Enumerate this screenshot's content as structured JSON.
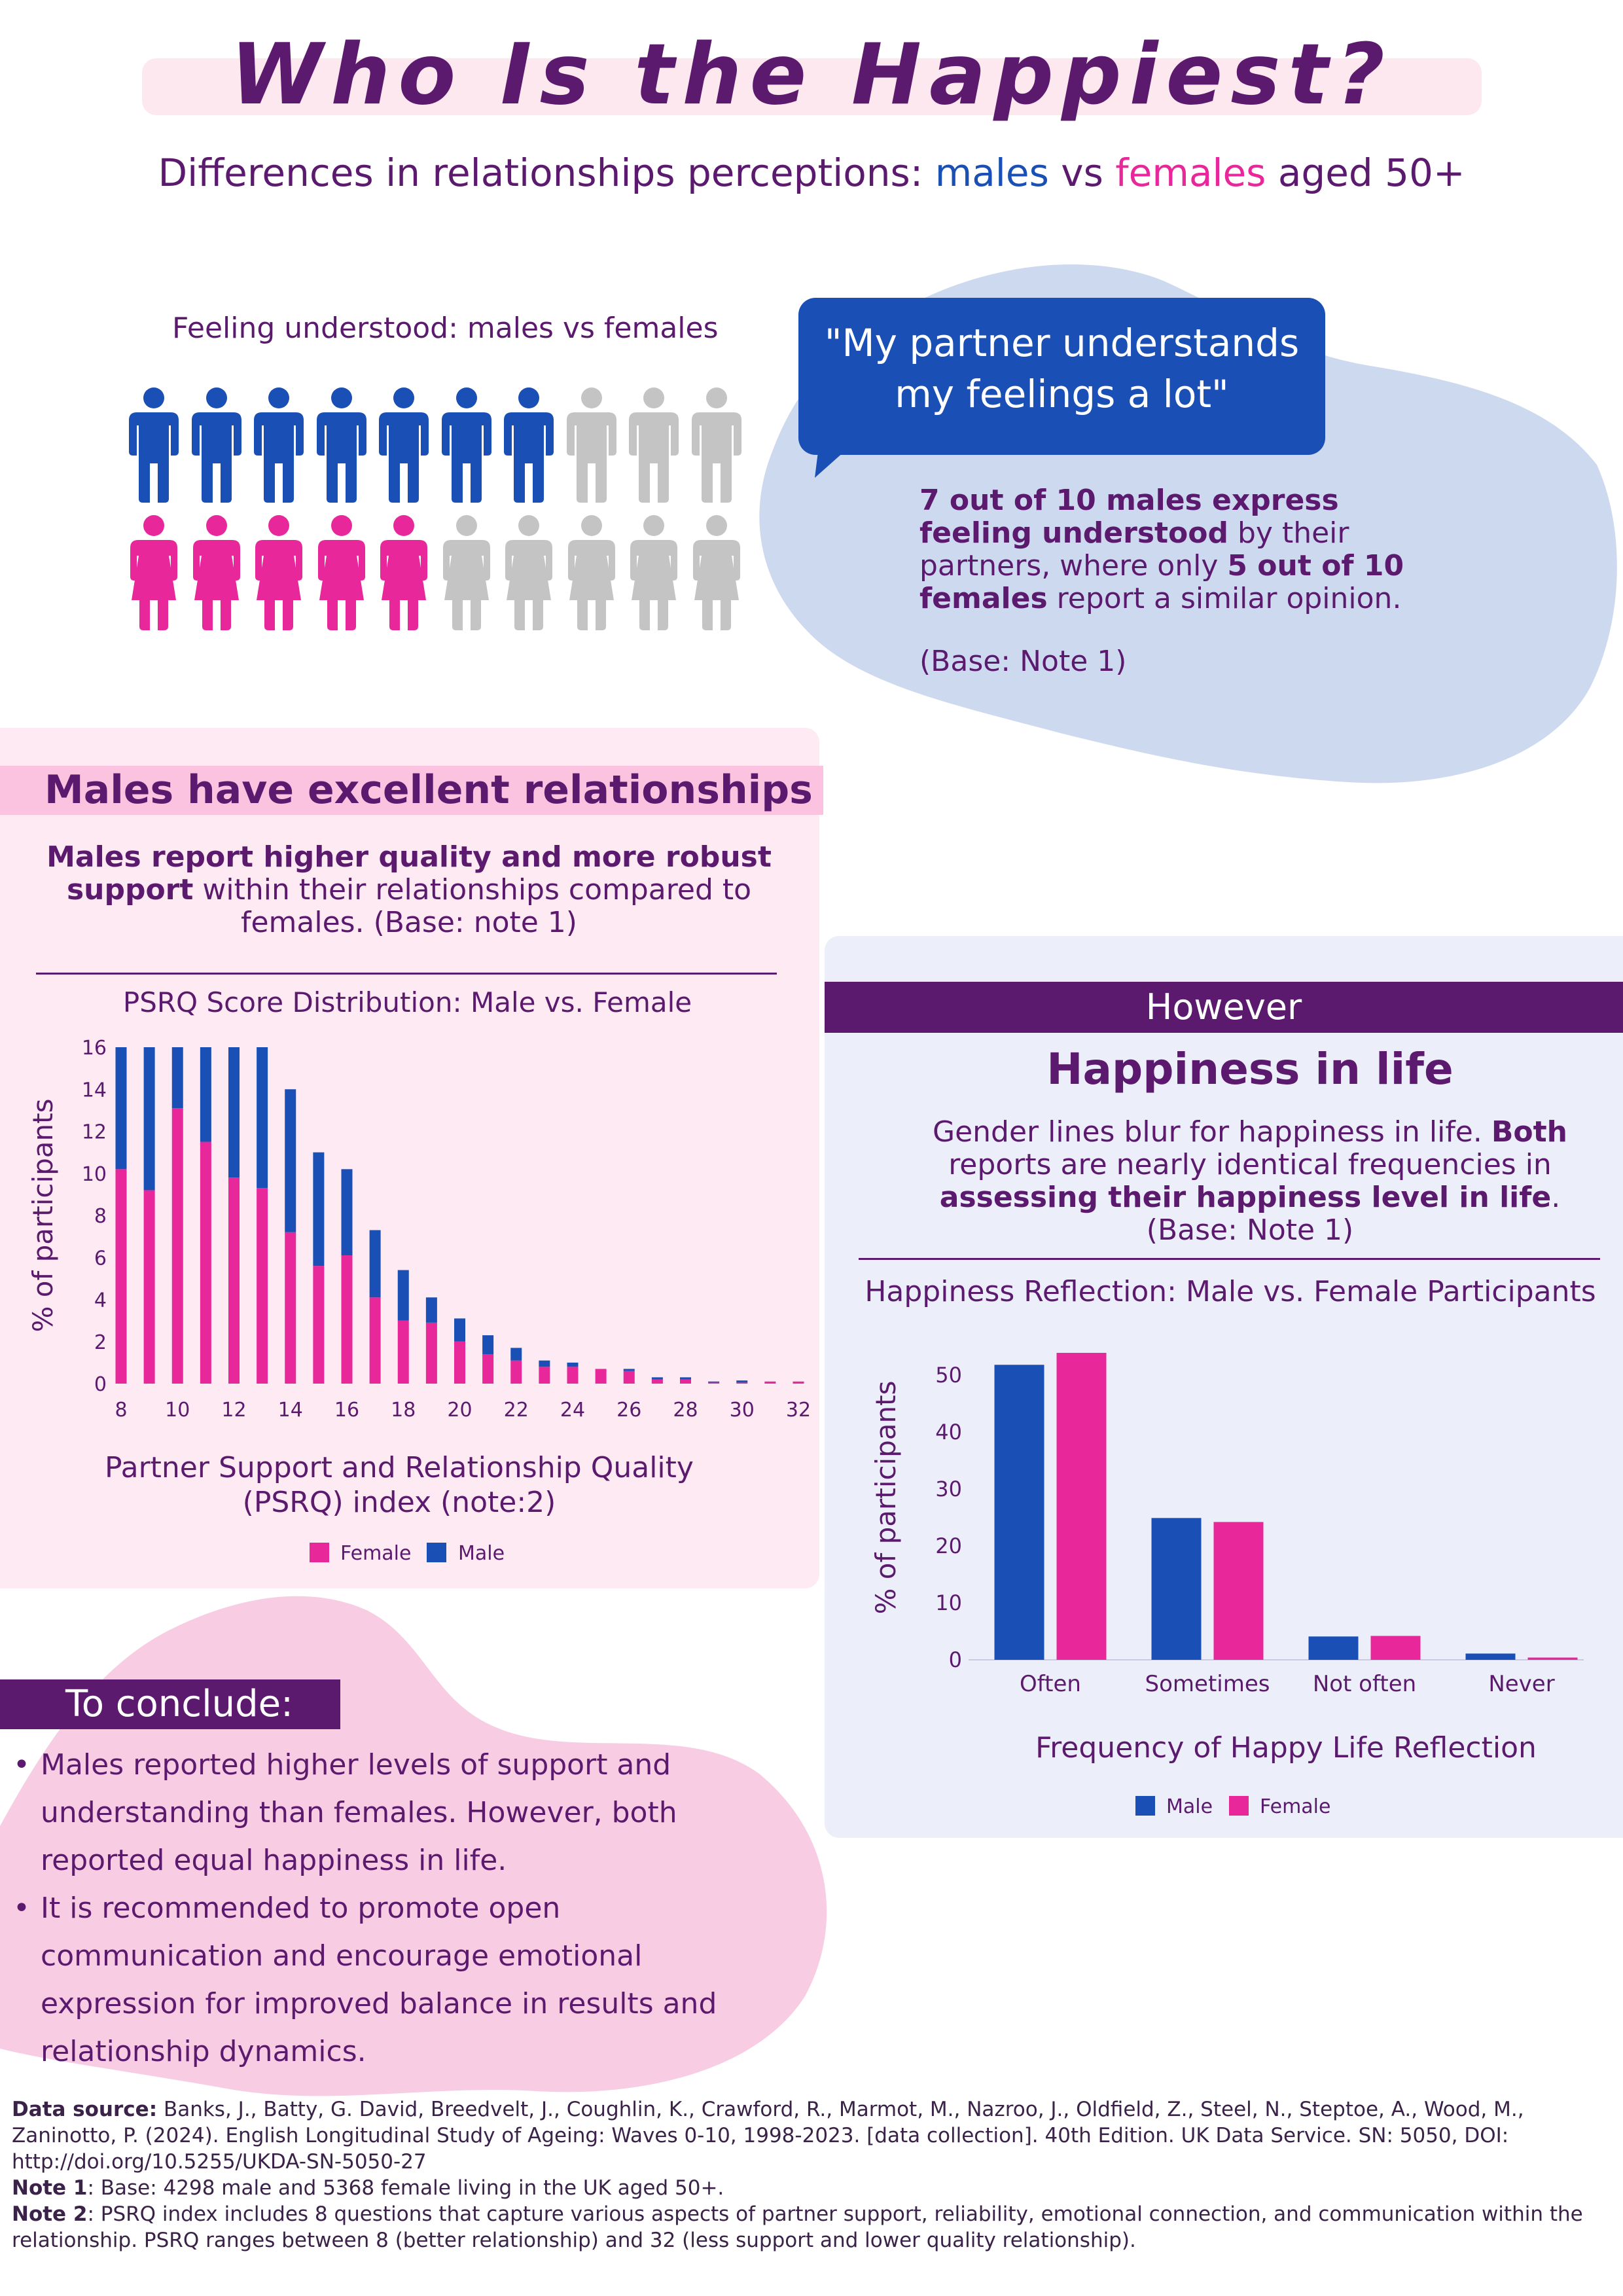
{
  "header": {
    "title": "Who Is the Happiest?",
    "subtitle_prefix": "Differences in relationships perceptions: ",
    "subtitle_males": "males",
    "subtitle_vs": " vs ",
    "subtitle_females": "females",
    "subtitle_suffix": " aged 50+"
  },
  "feeling_understood": {
    "title": "Feeling understood: males vs females",
    "quote": "\"My partner understands my feelings a lot\"",
    "text_bold_1": "7 out of 10 males express feeling understood",
    "text_1": " by their partners, where only ",
    "text_bold_2": "5 out of 10 females",
    "text_2": " report a similar opinion.",
    "base": "(Base: Note 1)",
    "male_count": 7,
    "female_count": 5,
    "total": 10
  },
  "males_panel": {
    "heading": "Males have excellent relationships",
    "text_bold": "Males report higher quality and more robust support",
    "text": " within their relationships compared to females. (Base: note 1)"
  },
  "however_panel": {
    "banner": "However",
    "heading": "Happiness in life",
    "text_1": "Gender lines blur for happiness in life. ",
    "text_bold_1": "Both",
    "text_2": " reports are nearly identical frequencies in ",
    "text_bold_2": "assessing their happiness level in life",
    "text_3": ". (Base: Note 1)"
  },
  "conclusion": {
    "banner": "To conclude:",
    "items": [
      "Males reported higher levels of support and understanding than females. However, both reported equal happiness in life.",
      "It is recommended to promote open communication and encourage emotional expression for improved balance in results and relationship dynamics."
    ]
  },
  "footnotes": {
    "source_label": "Data source:",
    "source_text": " Banks, J., Batty, G. David, Breedvelt, J., Coughlin, K., Crawford, R., Marmot, M., Nazroo, J., Oldfield, Z., Steel, N., Steptoe, A., Wood, M., Zaninotto, P. (2024). English Longitudinal Study of Ageing: Waves 0-10, 1998-2023. [data collection]. 40th Edition. UK Data Service. SN: 5050, DOI: http://doi.org/10.5255/UKDA-SN-5050-27",
    "note1_label": "Note 1",
    "note1_text": ": Base: 4298 male and 5368 female living in the UK aged 50+.",
    "note2_label": "Note 2",
    "note2_text": ": PSRQ index includes 8 questions that capture various aspects of partner support, reliability, emotional connection, and communication within the relationship. PSRQ ranges between 8 (better relationship) and 32 (less support and lower quality relationship)."
  },
  "colors": {
    "male": "#1a4fb5",
    "female": "#e8289a",
    "grey": "#c4c4c4",
    "purple": "#5b1a6e"
  },
  "chart_data": [
    {
      "type": "bar",
      "stacked": true,
      "title": "PSRQ Score Distribution: Male vs. Female",
      "xlabel": "Partner Support and Relationship Quality (PSRQ) index (note:2)",
      "ylabel": "% of participants",
      "ylim": [
        0,
        16
      ],
      "yticks": [
        0,
        2,
        4,
        6,
        8,
        10,
        12,
        14,
        16
      ],
      "xticks": [
        8,
        10,
        12,
        14,
        16,
        18,
        20,
        22,
        24,
        26,
        28,
        30,
        32
      ],
      "x": [
        8,
        9,
        10,
        11,
        12,
        13,
        14,
        15,
        16,
        17,
        18,
        19,
        20,
        21,
        22,
        23,
        24,
        25,
        26,
        27,
        28,
        29,
        30,
        31,
        32
      ],
      "series": [
        {
          "name": "Female",
          "color": "#e8289a",
          "values": [
            10.2,
            9.2,
            13.1,
            11.5,
            9.8,
            9.3,
            7.2,
            5.6,
            6.1,
            4.1,
            3.0,
            2.9,
            2.0,
            1.4,
            1.1,
            0.8,
            0.8,
            0.7,
            0.6,
            0.2,
            0.2,
            0.05,
            0.05,
            0.1,
            0.1
          ]
        },
        {
          "name": "Male",
          "color": "#1a4fb5",
          "values": [
            5.8,
            6.8,
            2.9,
            4.5,
            6.2,
            6.7,
            6.8,
            5.4,
            4.1,
            3.2,
            2.4,
            1.2,
            1.1,
            0.9,
            0.6,
            0.3,
            0.2,
            0.0,
            0.1,
            0.1,
            0.1,
            0.05,
            0.1,
            0.0,
            0.0
          ]
        }
      ],
      "legend": "bottom"
    },
    {
      "type": "bar",
      "title": "Happiness Reflection: Male vs. Female Participants",
      "xlabel": "Frequency of Happy Life Reflection",
      "ylabel": "% of participants",
      "ylim": [
        0,
        57
      ],
      "yticks": [
        0,
        10,
        20,
        30,
        40,
        50
      ],
      "categories": [
        "Often",
        "Sometimes",
        "Not often",
        "Never"
      ],
      "series": [
        {
          "name": "Male",
          "color": "#1a4fb5",
          "values": [
            51.8,
            24.9,
            4.1,
            1.1
          ]
        },
        {
          "name": "Female",
          "color": "#e8289a",
          "values": [
            53.9,
            24.2,
            4.2,
            0.4
          ]
        }
      ],
      "legend": "bottom"
    }
  ]
}
